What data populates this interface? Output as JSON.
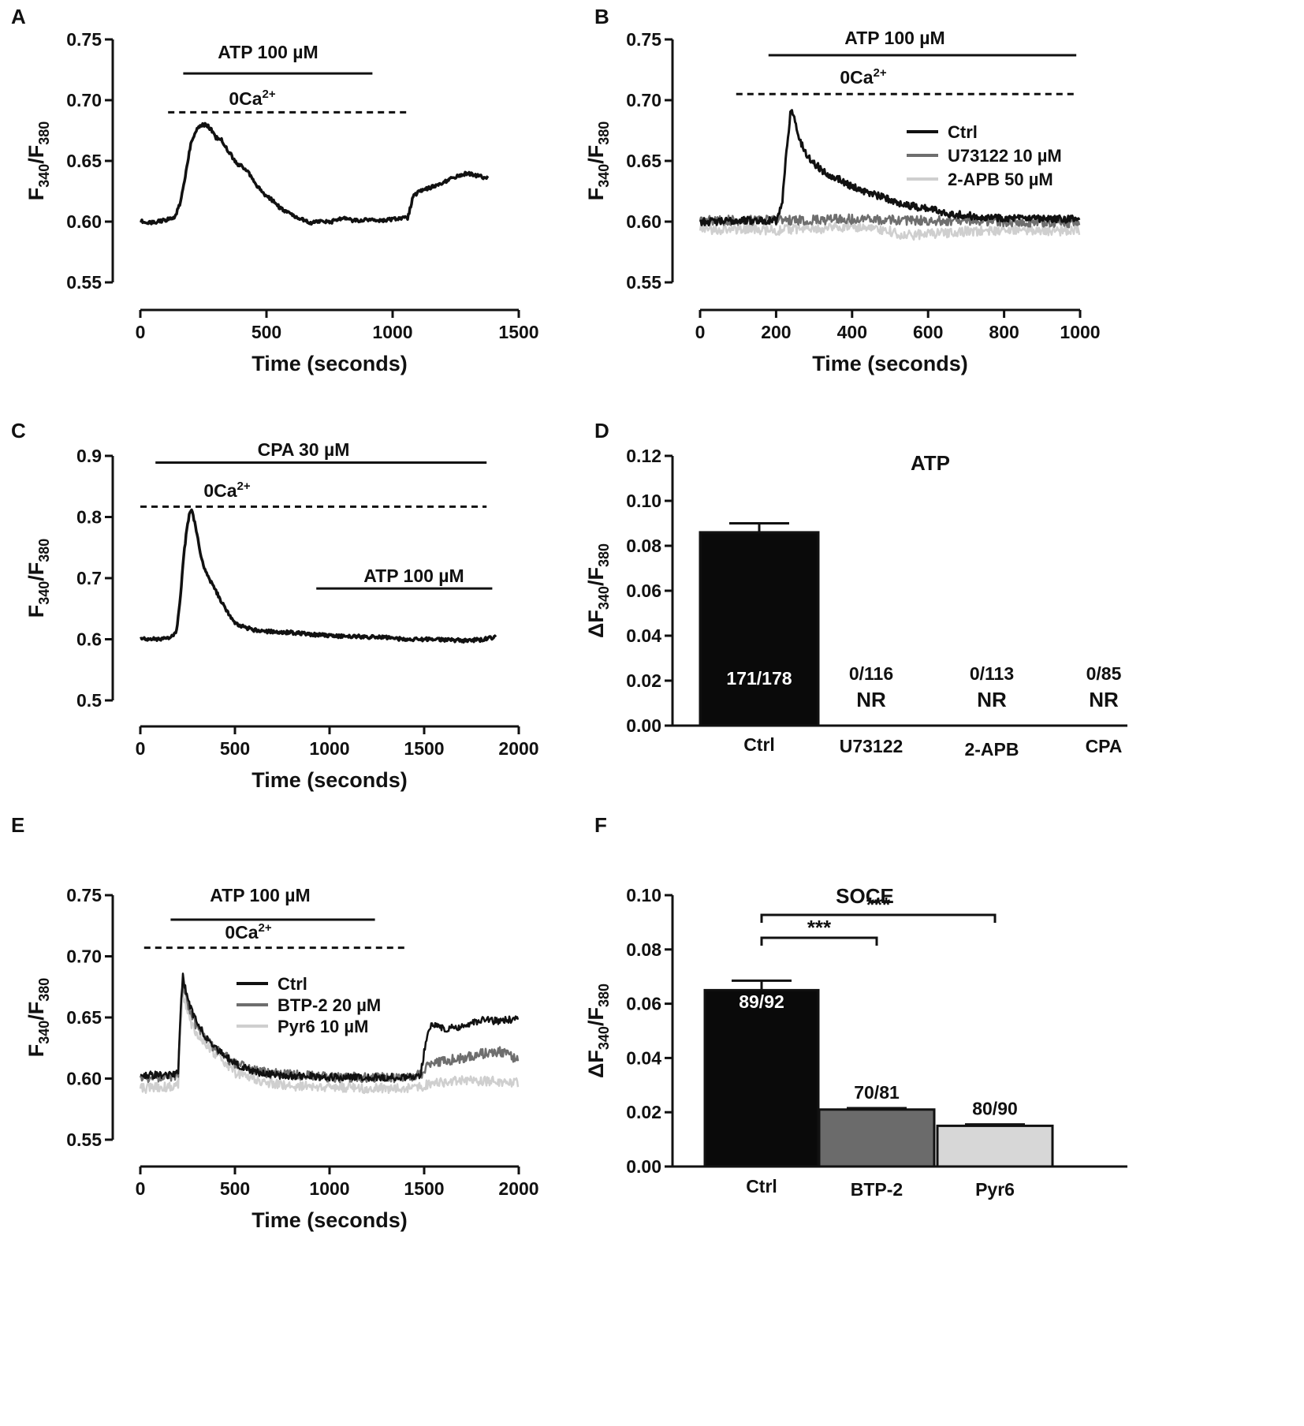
{
  "colors": {
    "ctrl": "#111111",
    "inhibitor1": "#6e6e6e",
    "inhibitor2": "#cfcfcf",
    "bar_ctrl": "#0a0a0a",
    "bar_btp2": "#6b6b6b",
    "bar_pyr6": "#d7d7d7"
  },
  "chart_data": [
    {
      "panel": "A",
      "type": "line",
      "xlabel": "Time (seconds)",
      "ylabel": [
        "F",
        "340",
        "/F",
        "380"
      ],
      "xlim": [
        0,
        1500
      ],
      "ylim": [
        0.55,
        0.75
      ],
      "xticks": [
        0,
        500,
        1000,
        1500
      ],
      "yticks": [
        "0.55",
        "0.60",
        "0.65",
        "0.70",
        "0.75"
      ],
      "annotations": [
        {
          "text": "ATP 100 µM",
          "x_start": 170,
          "x_end": 920,
          "style": "solid",
          "y": 0.722
        },
        {
          "text": "0Ca",
          "sup": "2+",
          "x_start": 110,
          "x_end": 1060,
          "style": "dashed",
          "y": 0.69
        }
      ],
      "series": [
        {
          "name": "Ctrl",
          "color": "#111111",
          "width": 3.5,
          "x": [
            0,
            30,
            60,
            90,
            120,
            140,
            160,
            180,
            200,
            220,
            240,
            260,
            280,
            300,
            320,
            340,
            360,
            380,
            400,
            430,
            460,
            490,
            520,
            560,
            600,
            640,
            680,
            720,
            760,
            800,
            840,
            880,
            920,
            960,
            1000,
            1040,
            1060,
            1080,
            1100,
            1150,
            1200,
            1250,
            1300,
            1350,
            1380
          ],
          "y": [
            0.601,
            0.599,
            0.6,
            0.601,
            0.602,
            0.605,
            0.616,
            0.64,
            0.664,
            0.675,
            0.679,
            0.68,
            0.676,
            0.669,
            0.668,
            0.661,
            0.655,
            0.648,
            0.646,
            0.64,
            0.63,
            0.623,
            0.618,
            0.61,
            0.606,
            0.602,
            0.599,
            0.6,
            0.6,
            0.603,
            0.601,
            0.601,
            0.602,
            0.601,
            0.602,
            0.603,
            0.603,
            0.62,
            0.624,
            0.628,
            0.632,
            0.637,
            0.64,
            0.637,
            0.636
          ],
          "noise": 0.0015
        }
      ]
    },
    {
      "panel": "B",
      "type": "line",
      "xlabel": "Time (seconds)",
      "ylabel": [
        "F",
        "340",
        "/F",
        "380"
      ],
      "xlim": [
        0,
        1000
      ],
      "ylim": [
        0.55,
        0.75
      ],
      "xticks": [
        0,
        200,
        400,
        600,
        800,
        1000
      ],
      "yticks": [
        "0.55",
        "0.60",
        "0.65",
        "0.70",
        "0.75"
      ],
      "annotations": [
        {
          "text": "ATP 100 µM",
          "x_start": 180,
          "x_end": 990,
          "style": "solid",
          "y": 0.737
        },
        {
          "text": "0Ca",
          "sup": "2+",
          "x_start": 95,
          "x_end": 985,
          "style": "dashed",
          "y": 0.705
        }
      ],
      "legend": {
        "position": "top-right",
        "entries": [
          "Ctrl",
          "U73122 10 µM",
          "2-APB 50 µM"
        ]
      },
      "series": [
        {
          "name": "2-APB 50 µM",
          "color": "#cfcfcf",
          "width": 2.5,
          "x": [
            0,
            100,
            200,
            300,
            400,
            500,
            520,
            560,
            600,
            700,
            800,
            900,
            1000
          ],
          "y": [
            0.593,
            0.594,
            0.593,
            0.594,
            0.596,
            0.592,
            0.59,
            0.589,
            0.59,
            0.592,
            0.593,
            0.593,
            0.592
          ],
          "noise": 0.004
        },
        {
          "name": "U73122 10 µM",
          "color": "#6e6e6e",
          "width": 2.5,
          "x": [
            0,
            200,
            400,
            600,
            800,
            1000
          ],
          "y": [
            0.601,
            0.601,
            0.602,
            0.601,
            0.6,
            0.599
          ],
          "noise": 0.004
        },
        {
          "name": "Ctrl",
          "color": "#111111",
          "width": 3,
          "x": [
            0,
            50,
            100,
            150,
            200,
            215,
            225,
            235,
            240,
            245,
            255,
            265,
            280,
            300,
            330,
            360,
            400,
            450,
            500,
            550,
            600,
            650,
            700,
            800,
            900,
            1000
          ],
          "y": [
            0.6,
            0.6,
            0.601,
            0.601,
            0.601,
            0.612,
            0.65,
            0.682,
            0.695,
            0.688,
            0.675,
            0.665,
            0.655,
            0.648,
            0.64,
            0.636,
            0.629,
            0.623,
            0.618,
            0.613,
            0.611,
            0.607,
            0.605,
            0.603,
            0.602,
            0.602
          ],
          "noise": 0.003
        }
      ]
    },
    {
      "panel": "C",
      "type": "line",
      "xlabel": "Time (seconds)",
      "ylabel": [
        "F",
        "340",
        "/F",
        "380"
      ],
      "xlim": [
        0,
        2000
      ],
      "ylim": [
        0.5,
        0.9
      ],
      "xticks": [
        0,
        500,
        1000,
        1500,
        2000
      ],
      "yticks": [
        "0.5",
        "0.6",
        "0.7",
        "0.8",
        "0.9"
      ],
      "annotations": [
        {
          "text": "CPA 30 µM",
          "x_start": 80,
          "x_end": 1830,
          "style": "solid",
          "y": 0.889
        },
        {
          "text": "0Ca",
          "sup": "2+",
          "x_start": 0,
          "x_end": 1830,
          "style": "dashed",
          "y": 0.817
        },
        {
          "text": "ATP 100 µM",
          "x_start": 930,
          "x_end": 1860,
          "style": "solid",
          "y": 0.683
        }
      ],
      "series": [
        {
          "name": "Ctrl",
          "color": "#111111",
          "width": 3.5,
          "x": [
            0,
            100,
            150,
            190,
            210,
            230,
            250,
            265,
            275,
            285,
            300,
            320,
            340,
            370,
            400,
            450,
            500,
            600,
            700,
            800,
            900,
            1000,
            1100,
            1200,
            1300,
            1400,
            1500,
            1600,
            1700,
            1800,
            1880
          ],
          "y": [
            0.601,
            0.6,
            0.601,
            0.61,
            0.66,
            0.74,
            0.79,
            0.812,
            0.808,
            0.795,
            0.77,
            0.737,
            0.715,
            0.695,
            0.678,
            0.65,
            0.625,
            0.615,
            0.612,
            0.611,
            0.608,
            0.606,
            0.605,
            0.604,
            0.603,
            0.6,
            0.6,
            0.599,
            0.598,
            0.599,
            0.604
          ],
          "noise": 0.003
        }
      ]
    },
    {
      "panel": "D",
      "type": "bar",
      "title": "ATP",
      "xlabel": "",
      "ylabel": [
        "ΔF",
        "340",
        "/F",
        "380"
      ],
      "ylim": [
        0,
        0.12
      ],
      "yticks": [
        "0.00",
        "0.02",
        "0.04",
        "0.06",
        "0.08",
        "0.10",
        "0.12"
      ],
      "categories": [
        "Ctrl",
        "U73122",
        "2-APB",
        "CPA"
      ],
      "values": [
        0.086,
        0,
        0,
        0
      ],
      "errors": [
        0.004,
        0,
        0,
        0
      ],
      "counts": [
        "171/178",
        "0/116",
        "0/113",
        "0/85"
      ],
      "notes": [
        "",
        "NR",
        "NR",
        "NR"
      ]
    },
    {
      "panel": "E",
      "type": "line",
      "xlabel": "Time (seconds)",
      "ylabel": [
        "F",
        "340",
        "/F",
        "380"
      ],
      "xlim": [
        0,
        2000
      ],
      "ylim": [
        0.55,
        0.75
      ],
      "xticks": [
        0,
        500,
        1000,
        1500,
        2000
      ],
      "yticks": [
        "0.55",
        "0.60",
        "0.65",
        "0.70",
        "0.75"
      ],
      "annotations": [
        {
          "text": "ATP 100 µM",
          "x_start": 160,
          "x_end": 1240,
          "style": "solid",
          "y": 0.73
        },
        {
          "text": "0Ca",
          "sup": "2+",
          "x_start": 20,
          "x_end": 1420,
          "style": "dashed",
          "y": 0.707
        }
      ],
      "legend": {
        "position": "center",
        "entries": [
          "Ctrl",
          "BTP-2 20 µM",
          "Pyr6 10 µM"
        ]
      },
      "series": [
        {
          "name": "Pyr6 10 µM",
          "color": "#cfcfcf",
          "width": 2.5,
          "x": [
            0,
            150,
            200,
            215,
            225,
            240,
            260,
            300,
            350,
            400,
            500,
            600,
            700,
            800,
            900,
            1000,
            1100,
            1200,
            1300,
            1400,
            1500,
            1510,
            1600,
            1700,
            1800,
            1900,
            2000
          ],
          "y": [
            0.592,
            0.593,
            0.596,
            0.65,
            0.67,
            0.66,
            0.648,
            0.636,
            0.628,
            0.62,
            0.605,
            0.6,
            0.596,
            0.594,
            0.594,
            0.593,
            0.593,
            0.592,
            0.592,
            0.592,
            0.593,
            0.595,
            0.597,
            0.598,
            0.598,
            0.598,
            0.596
          ],
          "noise": 0.004
        },
        {
          "name": "BTP-2 20 µM",
          "color": "#6e6e6e",
          "width": 2.5,
          "x": [
            0,
            150,
            200,
            215,
            225,
            240,
            260,
            300,
            350,
            400,
            500,
            600,
            700,
            800,
            900,
            1000,
            1100,
            1200,
            1300,
            1400,
            1500,
            1510,
            1600,
            1700,
            1800,
            1900,
            2000
          ],
          "y": [
            0.601,
            0.601,
            0.603,
            0.66,
            0.68,
            0.668,
            0.655,
            0.642,
            0.632,
            0.624,
            0.612,
            0.607,
            0.604,
            0.603,
            0.602,
            0.601,
            0.601,
            0.601,
            0.601,
            0.601,
            0.604,
            0.612,
            0.614,
            0.617,
            0.62,
            0.622,
            0.616
          ],
          "noise": 0.004
        },
        {
          "name": "Ctrl",
          "color": "#111111",
          "width": 2.5,
          "x": [
            0,
            150,
            200,
            215,
            225,
            240,
            260,
            300,
            350,
            400,
            500,
            600,
            700,
            800,
            900,
            1000,
            1100,
            1200,
            1300,
            1400,
            1480,
            1500,
            1520,
            1540,
            1600,
            1700,
            1800,
            1900,
            2000
          ],
          "y": [
            0.603,
            0.603,
            0.604,
            0.665,
            0.683,
            0.672,
            0.66,
            0.645,
            0.633,
            0.625,
            0.612,
            0.606,
            0.603,
            0.602,
            0.602,
            0.601,
            0.601,
            0.601,
            0.601,
            0.601,
            0.602,
            0.622,
            0.64,
            0.645,
            0.641,
            0.642,
            0.648,
            0.647,
            0.649
          ],
          "noise": 0.003
        }
      ]
    },
    {
      "panel": "F",
      "type": "bar",
      "title": "SOCE",
      "xlabel": "",
      "ylabel": [
        "ΔF",
        "340",
        "/F",
        "380"
      ],
      "ylim": [
        0,
        0.1
      ],
      "yticks": [
        "0.00",
        "0.02",
        "0.04",
        "0.06",
        "0.08",
        "0.10"
      ],
      "categories": [
        "Ctrl",
        "BTP-2",
        "Pyr6"
      ],
      "values": [
        0.065,
        0.021,
        0.015
      ],
      "errors": [
        0.0035,
        0.0005,
        0.0005
      ],
      "counts": [
        "89/92",
        "70/81",
        "80/90"
      ],
      "significance": [
        {
          "from": "Ctrl",
          "to": "BTP-2",
          "label": "***"
        },
        {
          "from": "Ctrl",
          "to": "Pyr6",
          "label": "***"
        }
      ]
    }
  ]
}
